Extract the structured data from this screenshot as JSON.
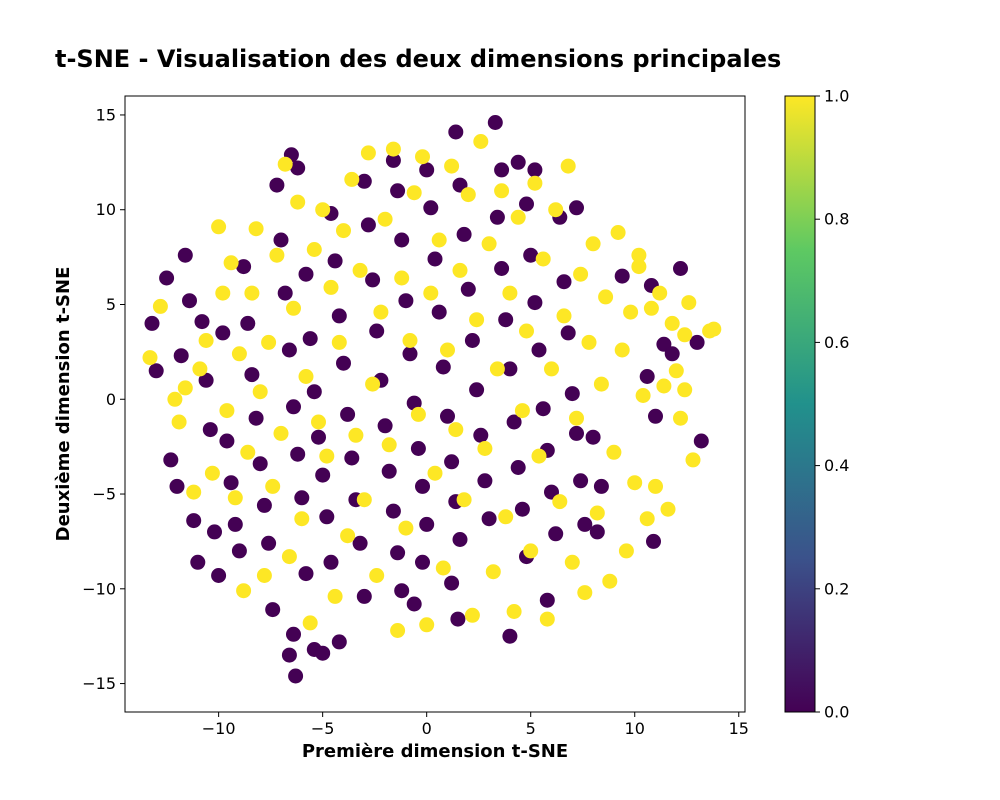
{
  "chart_data": {
    "type": "scatter",
    "title": "t-SNE - Visualisation des deux dimensions principales",
    "xlabel": "Première dimension t-SNE",
    "ylabel": "Deuxième dimension t-SNE",
    "xlim": [
      -14.5,
      15.3
    ],
    "ylim": [
      -16.5,
      16
    ],
    "xticks": [
      -10,
      -5,
      0,
      5,
      10,
      15
    ],
    "yticks": [
      -15,
      -10,
      -5,
      0,
      5,
      10,
      15
    ],
    "xtick_labels": [
      "−10",
      "−5",
      "0",
      "5",
      "10",
      "15"
    ],
    "ytick_labels": [
      "−15",
      "−10",
      "−5",
      "0",
      "5",
      "10",
      "15"
    ],
    "colorbar": {
      "range": [
        0.0,
        1.0
      ],
      "ticks": [
        0.0,
        0.2,
        0.4,
        0.6,
        0.8,
        1.0
      ],
      "tick_labels": [
        "0.0",
        "0.2",
        "0.4",
        "0.6",
        "0.8",
        "1.0"
      ],
      "colormap": "viridis",
      "stops": [
        "#440154",
        "#3b528b",
        "#21918c",
        "#5ec962",
        "#fde725"
      ]
    },
    "grid": false,
    "series": [
      {
        "label_value": 0,
        "color": "#440154",
        "points": [
          [
            -13.2,
            4.0
          ],
          [
            -13.0,
            1.5
          ],
          [
            -12.5,
            6.4
          ],
          [
            -12.3,
            -3.2
          ],
          [
            -12.0,
            -4.6
          ],
          [
            -11.8,
            2.3
          ],
          [
            -11.6,
            7.6
          ],
          [
            -11.4,
            5.2
          ],
          [
            -11.2,
            -6.4
          ],
          [
            -11.0,
            -8.6
          ],
          [
            -10.8,
            4.1
          ],
          [
            -10.6,
            1.0
          ],
          [
            -10.4,
            -1.6
          ],
          [
            -10.2,
            -7.0
          ],
          [
            -10.0,
            -9.3
          ],
          [
            -9.8,
            3.5
          ],
          [
            -9.6,
            -2.2
          ],
          [
            -9.4,
            -4.4
          ],
          [
            -9.2,
            -6.6
          ],
          [
            -9.0,
            -8.0
          ],
          [
            -8.8,
            7.0
          ],
          [
            -8.6,
            4.0
          ],
          [
            -8.4,
            1.3
          ],
          [
            -8.2,
            -1.0
          ],
          [
            -8.0,
            -3.4
          ],
          [
            -7.8,
            -5.6
          ],
          [
            -7.6,
            -7.6
          ],
          [
            -7.4,
            -11.1
          ],
          [
            -7.2,
            11.3
          ],
          [
            -7.0,
            8.4
          ],
          [
            -6.8,
            5.6
          ],
          [
            -6.6,
            2.6
          ],
          [
            -6.4,
            -0.4
          ],
          [
            -6.2,
            -2.9
          ],
          [
            -6.0,
            -5.2
          ],
          [
            -5.8,
            -9.2
          ],
          [
            -6.4,
            -12.4
          ],
          [
            -6.6,
            -13.5
          ],
          [
            -6.3,
            -14.6
          ],
          [
            -6.5,
            12.9
          ],
          [
            -6.2,
            12.2
          ],
          [
            -5.8,
            6.6
          ],
          [
            -5.6,
            3.2
          ],
          [
            -5.4,
            0.4
          ],
          [
            -5.2,
            -2.0
          ],
          [
            -5.0,
            -4.0
          ],
          [
            -4.8,
            -6.2
          ],
          [
            -4.6,
            -8.6
          ],
          [
            -5.4,
            -13.2
          ],
          [
            -5.0,
            -13.4
          ],
          [
            -4.6,
            9.8
          ],
          [
            -4.4,
            7.3
          ],
          [
            -4.2,
            4.4
          ],
          [
            -4.0,
            1.9
          ],
          [
            -3.8,
            -0.8
          ],
          [
            -3.6,
            -3.1
          ],
          [
            -3.4,
            -5.3
          ],
          [
            -3.2,
            -7.6
          ],
          [
            -3.0,
            -10.4
          ],
          [
            -4.2,
            -12.8
          ],
          [
            -3.0,
            11.5
          ],
          [
            -2.8,
            9.2
          ],
          [
            -2.6,
            6.3
          ],
          [
            -2.4,
            3.6
          ],
          [
            -2.2,
            1.0
          ],
          [
            -2.0,
            -1.4
          ],
          [
            -1.8,
            -3.8
          ],
          [
            -1.6,
            -5.9
          ],
          [
            -1.4,
            -8.1
          ],
          [
            -1.2,
            -10.1
          ],
          [
            -1.6,
            12.6
          ],
          [
            -1.4,
            11.0
          ],
          [
            -1.2,
            8.4
          ],
          [
            -1.0,
            5.2
          ],
          [
            -0.8,
            2.4
          ],
          [
            -0.6,
            -0.2
          ],
          [
            -0.4,
            -2.6
          ],
          [
            -0.2,
            -4.6
          ],
          [
            0.0,
            -6.6
          ],
          [
            -0.2,
            -8.6
          ],
          [
            -0.6,
            -10.8
          ],
          [
            0.0,
            12.1
          ],
          [
            0.2,
            10.1
          ],
          [
            0.4,
            7.4
          ],
          [
            0.6,
            4.6
          ],
          [
            0.8,
            1.7
          ],
          [
            1.0,
            -0.9
          ],
          [
            1.2,
            -3.3
          ],
          [
            1.4,
            -5.4
          ],
          [
            1.6,
            -7.4
          ],
          [
            1.2,
            -9.7
          ],
          [
            1.5,
            -11.6
          ],
          [
            1.4,
            14.1
          ],
          [
            1.6,
            11.3
          ],
          [
            1.8,
            8.7
          ],
          [
            2.0,
            5.8
          ],
          [
            2.2,
            3.1
          ],
          [
            2.4,
            0.5
          ],
          [
            2.6,
            -1.9
          ],
          [
            2.8,
            -4.3
          ],
          [
            3.0,
            -6.3
          ],
          [
            3.3,
            14.6
          ],
          [
            3.6,
            12.1
          ],
          [
            3.4,
            9.6
          ],
          [
            3.6,
            6.9
          ],
          [
            3.8,
            4.2
          ],
          [
            4.0,
            1.6
          ],
          [
            4.2,
            -1.2
          ],
          [
            4.4,
            -3.6
          ],
          [
            4.6,
            -5.8
          ],
          [
            4.8,
            -8.3
          ],
          [
            4.0,
            -12.5
          ],
          [
            4.4,
            12.5
          ],
          [
            4.8,
            10.3
          ],
          [
            5.0,
            7.6
          ],
          [
            5.2,
            5.1
          ],
          [
            5.4,
            2.6
          ],
          [
            5.6,
            -0.5
          ],
          [
            5.8,
            -2.7
          ],
          [
            6.0,
            -4.9
          ],
          [
            6.2,
            -7.1
          ],
          [
            5.8,
            -10.6
          ],
          [
            5.2,
            12.1
          ],
          [
            6.4,
            9.6
          ],
          [
            6.6,
            6.2
          ],
          [
            6.8,
            3.5
          ],
          [
            7.0,
            0.3
          ],
          [
            7.2,
            -1.8
          ],
          [
            7.4,
            -4.3
          ],
          [
            7.6,
            -6.6
          ],
          [
            7.2,
            10.1
          ],
          [
            8.0,
            -2.0
          ],
          [
            8.4,
            -4.6
          ],
          [
            8.2,
            -7.0
          ],
          [
            9.4,
            6.5
          ],
          [
            10.6,
            1.2
          ],
          [
            11.0,
            -0.9
          ],
          [
            10.8,
            6.0
          ],
          [
            11.4,
            2.9
          ],
          [
            11.8,
            2.4
          ],
          [
            12.2,
            6.9
          ],
          [
            13.0,
            3.0
          ],
          [
            13.2,
            -2.2
          ],
          [
            10.9,
            -7.5
          ]
        ]
      },
      {
        "label_value": 1,
        "color": "#fde725",
        "points": [
          [
            -13.3,
            2.2
          ],
          [
            -12.8,
            4.9
          ],
          [
            -12.1,
            0.0
          ],
          [
            -11.9,
            -1.2
          ],
          [
            -11.6,
            0.6
          ],
          [
            -11.2,
            -4.9
          ],
          [
            -10.9,
            1.6
          ],
          [
            -10.6,
            3.1
          ],
          [
            -10.3,
            -3.9
          ],
          [
            -10.0,
            9.1
          ],
          [
            -9.8,
            5.6
          ],
          [
            -9.6,
            -0.6
          ],
          [
            -9.4,
            7.2
          ],
          [
            -9.2,
            -5.2
          ],
          [
            -9.0,
            2.4
          ],
          [
            -8.8,
            -10.1
          ],
          [
            -8.6,
            -2.8
          ],
          [
            -8.4,
            5.6
          ],
          [
            -8.2,
            9.0
          ],
          [
            -8.0,
            0.4
          ],
          [
            -7.8,
            -9.3
          ],
          [
            -7.6,
            3.0
          ],
          [
            -7.4,
            -4.6
          ],
          [
            -7.2,
            7.6
          ],
          [
            -7.0,
            -1.8
          ],
          [
            -6.8,
            12.4
          ],
          [
            -6.6,
            -8.3
          ],
          [
            -6.4,
            4.8
          ],
          [
            -6.2,
            10.4
          ],
          [
            -6.0,
            -6.3
          ],
          [
            -5.8,
            1.2
          ],
          [
            -5.6,
            -11.8
          ],
          [
            -5.4,
            7.9
          ],
          [
            -5.2,
            -1.2
          ],
          [
            -5.0,
            10.0
          ],
          [
            -4.8,
            -3.0
          ],
          [
            -4.6,
            5.9
          ],
          [
            -4.4,
            -10.4
          ],
          [
            -4.2,
            3.0
          ],
          [
            -4.0,
            8.9
          ],
          [
            -3.8,
            -7.2
          ],
          [
            -3.6,
            11.6
          ],
          [
            -3.4,
            -1.9
          ],
          [
            -3.2,
            6.8
          ],
          [
            -3.0,
            -5.3
          ],
          [
            -2.8,
            13.0
          ],
          [
            -2.6,
            0.8
          ],
          [
            -2.4,
            -9.3
          ],
          [
            -2.2,
            4.6
          ],
          [
            -2.0,
            9.5
          ],
          [
            -1.8,
            -2.4
          ],
          [
            -1.6,
            13.2
          ],
          [
            -1.4,
            -12.2
          ],
          [
            -1.2,
            6.4
          ],
          [
            -1.0,
            -6.8
          ],
          [
            -0.8,
            3.1
          ],
          [
            -0.6,
            10.9
          ],
          [
            -0.4,
            -0.8
          ],
          [
            -0.2,
            12.8
          ],
          [
            0.0,
            -11.9
          ],
          [
            0.2,
            5.6
          ],
          [
            0.4,
            -3.9
          ],
          [
            0.6,
            8.4
          ],
          [
            0.8,
            -8.9
          ],
          [
            1.0,
            2.6
          ],
          [
            1.2,
            12.3
          ],
          [
            1.4,
            -1.6
          ],
          [
            1.6,
            6.8
          ],
          [
            1.8,
            -5.3
          ],
          [
            2.0,
            10.8
          ],
          [
            2.2,
            -11.4
          ],
          [
            2.4,
            4.2
          ],
          [
            2.6,
            13.6
          ],
          [
            2.8,
            -2.6
          ],
          [
            3.0,
            8.2
          ],
          [
            3.2,
            -9.1
          ],
          [
            3.4,
            1.6
          ],
          [
            3.6,
            11.0
          ],
          [
            3.8,
            -6.2
          ],
          [
            4.0,
            5.6
          ],
          [
            4.2,
            -11.2
          ],
          [
            4.4,
            9.6
          ],
          [
            4.6,
            -0.6
          ],
          [
            4.8,
            3.6
          ],
          [
            5.0,
            -8.0
          ],
          [
            5.2,
            11.4
          ],
          [
            5.4,
            -3.0
          ],
          [
            5.6,
            7.4
          ],
          [
            5.8,
            -11.6
          ],
          [
            6.0,
            1.6
          ],
          [
            6.2,
            10.0
          ],
          [
            6.4,
            -5.4
          ],
          [
            6.6,
            4.4
          ],
          [
            6.8,
            12.3
          ],
          [
            7.0,
            -8.6
          ],
          [
            7.2,
            -1.0
          ],
          [
            7.4,
            6.6
          ],
          [
            7.6,
            -10.2
          ],
          [
            7.8,
            3.0
          ],
          [
            8.0,
            8.2
          ],
          [
            8.2,
            -6.0
          ],
          [
            8.4,
            0.8
          ],
          [
            8.6,
            5.4
          ],
          [
            8.8,
            -9.6
          ],
          [
            9.0,
            -2.8
          ],
          [
            9.2,
            8.8
          ],
          [
            9.4,
            2.6
          ],
          [
            9.6,
            -8.0
          ],
          [
            9.8,
            4.6
          ],
          [
            10.0,
            -4.4
          ],
          [
            10.2,
            7.6
          ],
          [
            10.4,
            0.2
          ],
          [
            10.6,
            -6.3
          ],
          [
            10.8,
            4.8
          ],
          [
            11.0,
            -4.6
          ],
          [
            11.2,
            5.6
          ],
          [
            11.4,
            0.7
          ],
          [
            11.6,
            -5.8
          ],
          [
            11.8,
            4.0
          ],
          [
            12.0,
            1.5
          ],
          [
            12.2,
            -1.0
          ],
          [
            12.4,
            3.4
          ],
          [
            12.6,
            5.1
          ],
          [
            12.8,
            -3.2
          ],
          [
            13.6,
            3.6
          ],
          [
            13.8,
            3.7
          ],
          [
            12.4,
            0.5
          ],
          [
            10.2,
            7.0
          ]
        ]
      }
    ]
  }
}
